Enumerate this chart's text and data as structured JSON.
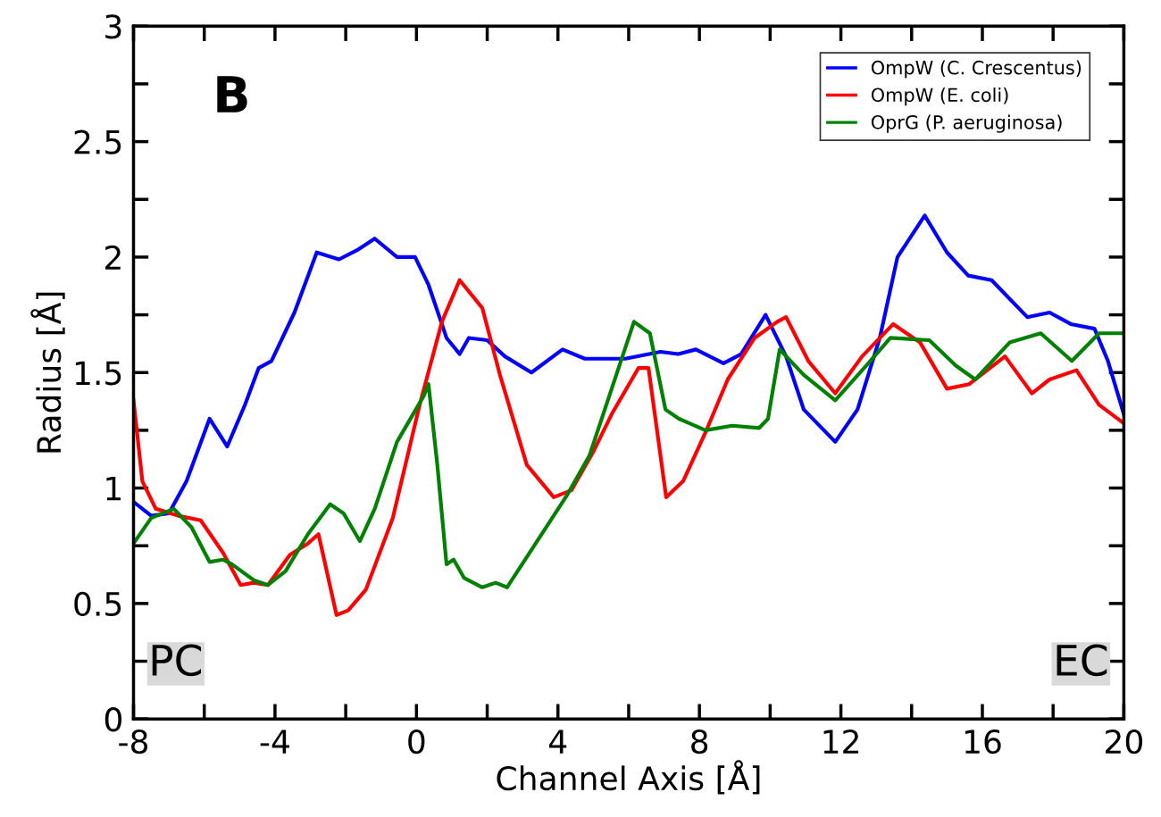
{
  "chart_data": {
    "type": "line",
    "xlabel": "Channel Axis [Å]",
    "ylabel": "Radius [Å]",
    "xlim": [
      -8,
      20
    ],
    "xticks": [
      -8,
      -4,
      0,
      4,
      8,
      12,
      16,
      20
    ],
    "ylim": [
      0,
      3
    ],
    "yticks": [
      0,
      0.5,
      1,
      1.5,
      2,
      2.5,
      3
    ],
    "grid": false,
    "legend": "top right",
    "marker": "none",
    "line_style": "solid",
    "annotations": [
      "B",
      "PC",
      "EC"
    ],
    "series": [
      {
        "name": "OmpW (C. Crescentus)",
        "color": "#0000ff",
        "x": [
          -8,
          -7.5,
          -7,
          -6.5,
          -5.85,
          -5.35,
          -4.85,
          -4.46,
          -4.1,
          -3.45,
          -2.82,
          -2.19,
          -1.68,
          -1.18,
          -0.55,
          -0.04,
          0.34,
          0.85,
          1.22,
          1.48,
          2.0,
          2.5,
          3.25,
          4.13,
          4.76,
          5.9,
          6.9,
          7.4,
          7.9,
          8.68,
          9.18,
          9.87,
          10.45,
          10.95,
          11.84,
          12.47,
          13.1,
          13.6,
          14.37,
          15.0,
          15.6,
          16.26,
          17.27,
          17.9,
          18.5,
          19.17,
          19.55,
          20
        ],
        "values": [
          0.94,
          0.88,
          0.89,
          1.03,
          1.3,
          1.18,
          1.36,
          1.52,
          1.55,
          1.76,
          2.02,
          1.99,
          2.03,
          2.08,
          2.0,
          2.0,
          1.88,
          1.65,
          1.58,
          1.65,
          1.64,
          1.57,
          1.5,
          1.6,
          1.56,
          1.56,
          1.59,
          1.58,
          1.6,
          1.54,
          1.58,
          1.75,
          1.57,
          1.34,
          1.2,
          1.34,
          1.65,
          2.0,
          2.18,
          2.02,
          1.92,
          1.9,
          1.74,
          1.76,
          1.71,
          1.69,
          1.55,
          1.32
        ]
      },
      {
        "name": "OmpW (E. coli)",
        "color": "#ff0000",
        "x": [
          -8,
          -7.75,
          -7.37,
          -6.74,
          -6.1,
          -5.47,
          -4.97,
          -4.6,
          -4.2,
          -3.58,
          -3.07,
          -2.77,
          -2.26,
          -1.93,
          -1.43,
          -0.67,
          0.09,
          0.72,
          1.22,
          1.86,
          2.36,
          3.12,
          3.88,
          4.38,
          5.01,
          5.52,
          6.28,
          6.56,
          7.06,
          7.54,
          8.17,
          8.8,
          9.56,
          10.2,
          10.45,
          11.08,
          11.84,
          12.6,
          13.48,
          14.24,
          15.0,
          15.63,
          16.64,
          17.4,
          17.9,
          18.66,
          19.3,
          20
        ],
        "values": [
          1.38,
          1.03,
          0.91,
          0.88,
          0.86,
          0.72,
          0.58,
          0.59,
          0.58,
          0.71,
          0.76,
          0.8,
          0.45,
          0.47,
          0.56,
          0.87,
          1.36,
          1.72,
          1.9,
          1.78,
          1.49,
          1.1,
          0.96,
          0.99,
          1.16,
          1.32,
          1.52,
          1.52,
          0.96,
          1.03,
          1.24,
          1.47,
          1.65,
          1.72,
          1.74,
          1.55,
          1.41,
          1.57,
          1.71,
          1.63,
          1.43,
          1.45,
          1.57,
          1.41,
          1.47,
          1.51,
          1.36,
          1.28
        ]
      },
      {
        "name": "OprG (P. aeruginosa)",
        "color": "#008000",
        "x": [
          -8,
          -7.5,
          -6.86,
          -6.36,
          -5.85,
          -5.47,
          -5.22,
          -4.59,
          -4.2,
          -3.7,
          -3.07,
          -2.44,
          -2.06,
          -1.6,
          -1.18,
          -0.55,
          0.21,
          0.34,
          0.59,
          0.85,
          1.05,
          1.35,
          1.86,
          2.24,
          2.56,
          3.37,
          4.26,
          4.89,
          5.65,
          6.15,
          6.6,
          7.04,
          7.42,
          8.17,
          8.93,
          9.69,
          9.94,
          10.27,
          10.95,
          11.84,
          12.72,
          13.4,
          14.5,
          15.25,
          15.8,
          16.77,
          17.65,
          18.53,
          19.3,
          20
        ],
        "values": [
          0.76,
          0.87,
          0.91,
          0.83,
          0.68,
          0.69,
          0.67,
          0.6,
          0.58,
          0.64,
          0.8,
          0.93,
          0.89,
          0.77,
          0.91,
          1.2,
          1.4,
          1.45,
          1.1,
          0.67,
          0.69,
          0.61,
          0.57,
          0.59,
          0.57,
          0.76,
          0.97,
          1.14,
          1.49,
          1.72,
          1.67,
          1.34,
          1.3,
          1.25,
          1.27,
          1.26,
          1.3,
          1.6,
          1.49,
          1.38,
          1.53,
          1.65,
          1.64,
          1.53,
          1.47,
          1.63,
          1.67,
          1.55,
          1.67,
          1.67
        ]
      }
    ]
  }
}
